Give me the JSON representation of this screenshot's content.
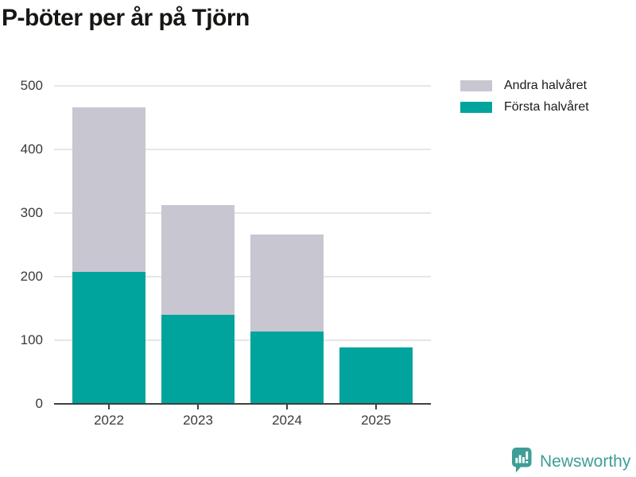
{
  "title": "P-böter per år på Tjörn",
  "legend": [
    {
      "label": "Andra halvåret",
      "color": "#c8c6d0"
    },
    {
      "label": "Första halvåret",
      "color": "#00a49c"
    }
  ],
  "chart_data": {
    "type": "bar",
    "stacked": true,
    "title": "P-böter per år på Tjörn",
    "categories": [
      "2022",
      "2023",
      "2024",
      "2025"
    ],
    "series": [
      {
        "name": "Första halvåret",
        "color": "#00a49c",
        "values": [
          207,
          140,
          114,
          89
        ]
      },
      {
        "name": "Andra halvåret",
        "color": "#c8c6d0",
        "values": [
          259,
          173,
          152,
          0
        ]
      }
    ],
    "totals": [
      466,
      313,
      266,
      89
    ],
    "xlabel": "",
    "ylabel": "",
    "ylim": [
      0,
      500
    ],
    "yticks": [
      0,
      100,
      200,
      300,
      400,
      500
    ],
    "grid": true,
    "legend_position": "top-right"
  },
  "footer": {
    "brand": "Newsworthy",
    "brand_color": "#3e9e96",
    "logo_icon": "newsworthy-speech-bubble-bars-icon"
  },
  "colors": {
    "first_half": "#00a49c",
    "second_half": "#c8c6d0",
    "axis": "#3f3f3f",
    "gridline": "#e6e6e6",
    "tick_text": "#3b3b3b",
    "title_text": "#161613"
  }
}
